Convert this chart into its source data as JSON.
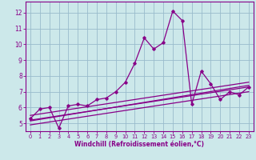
{
  "title": "",
  "xlabel": "Windchill (Refroidissement éolien,°C)",
  "ylabel": "",
  "xlim": [
    -0.5,
    23.5
  ],
  "ylim": [
    4.5,
    12.7
  ],
  "yticks": [
    5,
    6,
    7,
    8,
    9,
    10,
    11,
    12
  ],
  "xticks": [
    0,
    1,
    2,
    3,
    4,
    5,
    6,
    7,
    8,
    9,
    10,
    11,
    12,
    13,
    14,
    15,
    16,
    17,
    18,
    19,
    20,
    21,
    22,
    23
  ],
  "bg_color": "#cce8ea",
  "line_color": "#880088",
  "grid_color": "#99bbcc",
  "line1_x": [
    0,
    1,
    2,
    3,
    4,
    5,
    6,
    7,
    8,
    9,
    10,
    11,
    12,
    13,
    14,
    15,
    16,
    17,
    18,
    19,
    20,
    21,
    22,
    23
  ],
  "line1_y": [
    5.3,
    5.9,
    6.0,
    4.7,
    6.1,
    6.2,
    6.1,
    6.5,
    6.6,
    7.0,
    7.6,
    8.8,
    10.4,
    9.7,
    10.1,
    12.1,
    11.5,
    6.2,
    8.3,
    7.5,
    6.5,
    7.0,
    6.8,
    7.3
  ],
  "line2_x": [
    0,
    23
  ],
  "line2_y": [
    5.2,
    7.3
  ],
  "line3_x": [
    0,
    23
  ],
  "line3_y": [
    4.9,
    7.0
  ],
  "line4_x": [
    0,
    23
  ],
  "line4_y": [
    5.5,
    7.6
  ],
  "line5_x": [
    0,
    23
  ],
  "line5_y": [
    5.15,
    7.4
  ]
}
